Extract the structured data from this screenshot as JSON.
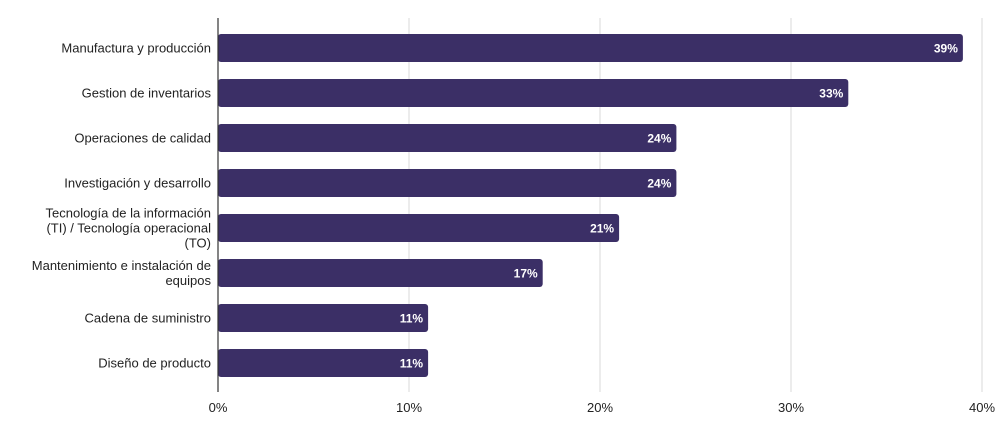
{
  "chart_data": {
    "type": "bar",
    "orientation": "horizontal",
    "categories": [
      [
        "Manufactura y producción"
      ],
      [
        "Gestion de inventarios"
      ],
      [
        "Operaciones de calidad"
      ],
      [
        "Investigación y desarrollo"
      ],
      [
        "Tecnología de la información",
        "(TI) / Tecnología operacional",
        "(TO)"
      ],
      [
        "Mantenimiento e instalación de",
        "equipos"
      ],
      [
        "Cadena de suministro"
      ],
      [
        "Diseño de producto"
      ]
    ],
    "values": [
      39,
      33,
      24,
      24,
      21,
      17,
      11,
      11
    ],
    "data_labels": [
      "39%",
      "33%",
      "24%",
      "24%",
      "21%",
      "17%",
      "11%",
      "11%"
    ],
    "x_ticks": [
      0,
      10,
      20,
      30,
      40
    ],
    "x_tick_labels": [
      "0%",
      "10%",
      "20%",
      "30%",
      "40%"
    ],
    "xlim": [
      0,
      40
    ],
    "grid": "vertical",
    "legend": "none",
    "bar_color": "#3b2f66",
    "grid_color": "#d9d9d9",
    "axis_color": "#333333"
  }
}
